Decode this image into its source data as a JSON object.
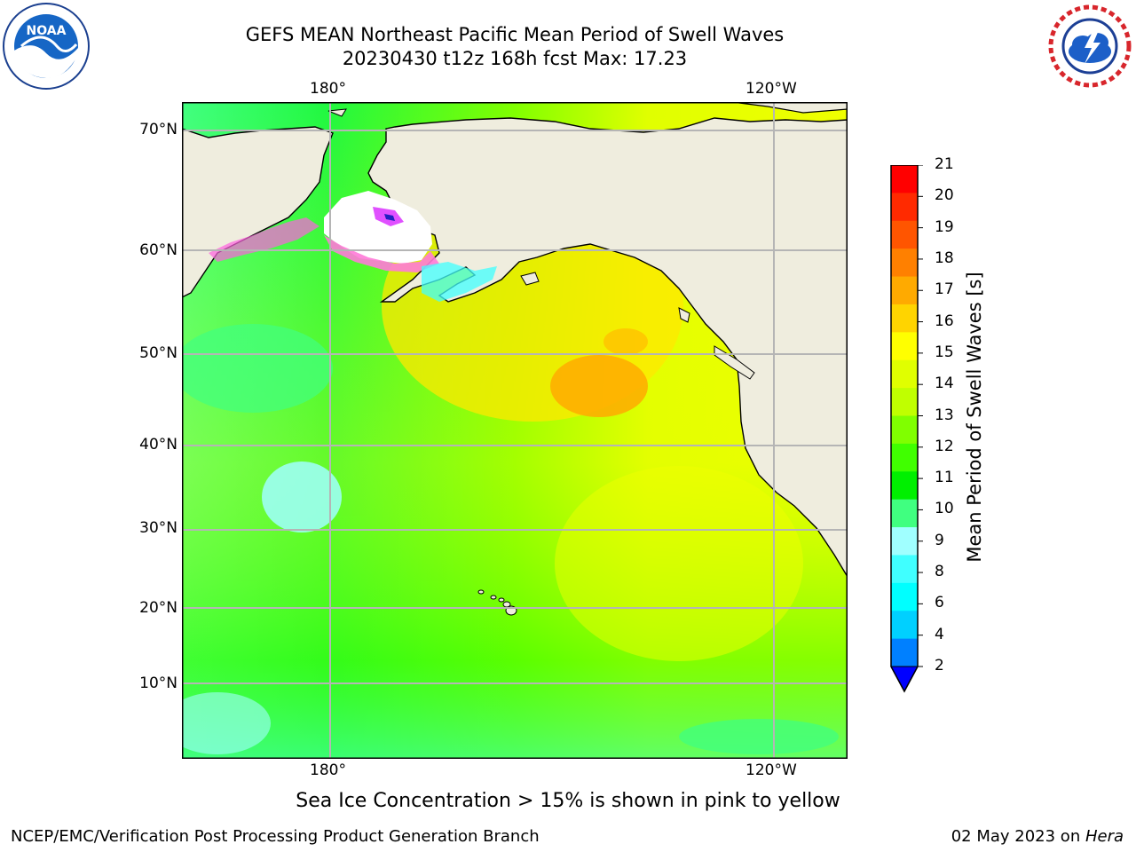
{
  "header": {
    "title_line1": "GEFS MEAN Northeast Pacific Mean Period of Swell Waves",
    "title_line2": "20230430 t12z 168h fcst   Max: 17.23"
  },
  "logos": {
    "noaa_text": "NOAA",
    "noaa_ring": "NATIONAL OCEANIC AND ATMOSPHERIC ADMINISTRATION · U.S. DEPARTMENT OF COMMERCE",
    "nws_ring": "NATIONAL WEATHER SERVICE"
  },
  "map": {
    "lon_labels_top": [
      "180°",
      "120°W"
    ],
    "lon_labels_bottom": [
      "180°",
      "120°W"
    ],
    "lat_labels": [
      "70°N",
      "60°N",
      "50°N",
      "40°N",
      "30°N",
      "20°N",
      "10°N"
    ],
    "colors": {
      "land": "#efedde",
      "ice": "#ffffff",
      "grid": "#b5b5b5",
      "frame": "#000000"
    }
  },
  "colorbar": {
    "label": "Mean Period of Swell Waves [s]",
    "ticks": [
      "21",
      "20",
      "19",
      "18",
      "17",
      "16",
      "15",
      "14",
      "13",
      "12",
      "11",
      "10",
      "9",
      "8",
      "6",
      "4",
      "2"
    ],
    "colors_top_to_bottom": [
      "#ff0000",
      "#ff2a00",
      "#ff5500",
      "#ff8000",
      "#ffaa00",
      "#ffd400",
      "#ffff00",
      "#e0ff00",
      "#c0ff00",
      "#80ff00",
      "#40ff00",
      "#00f000",
      "#40ff80",
      "#a0ffff",
      "#40ffff",
      "#00ffff",
      "#00d0ff",
      "#0080ff"
    ],
    "under_color": "#0000ff"
  },
  "caption": "Sea Ice Concentration > 15% is shown in pink to yellow",
  "footer": {
    "left": "NCEP/EMC/Verification Post Processing Product Generation Branch",
    "right_date": "02 May 2023 on ",
    "right_host": "Hera"
  }
}
